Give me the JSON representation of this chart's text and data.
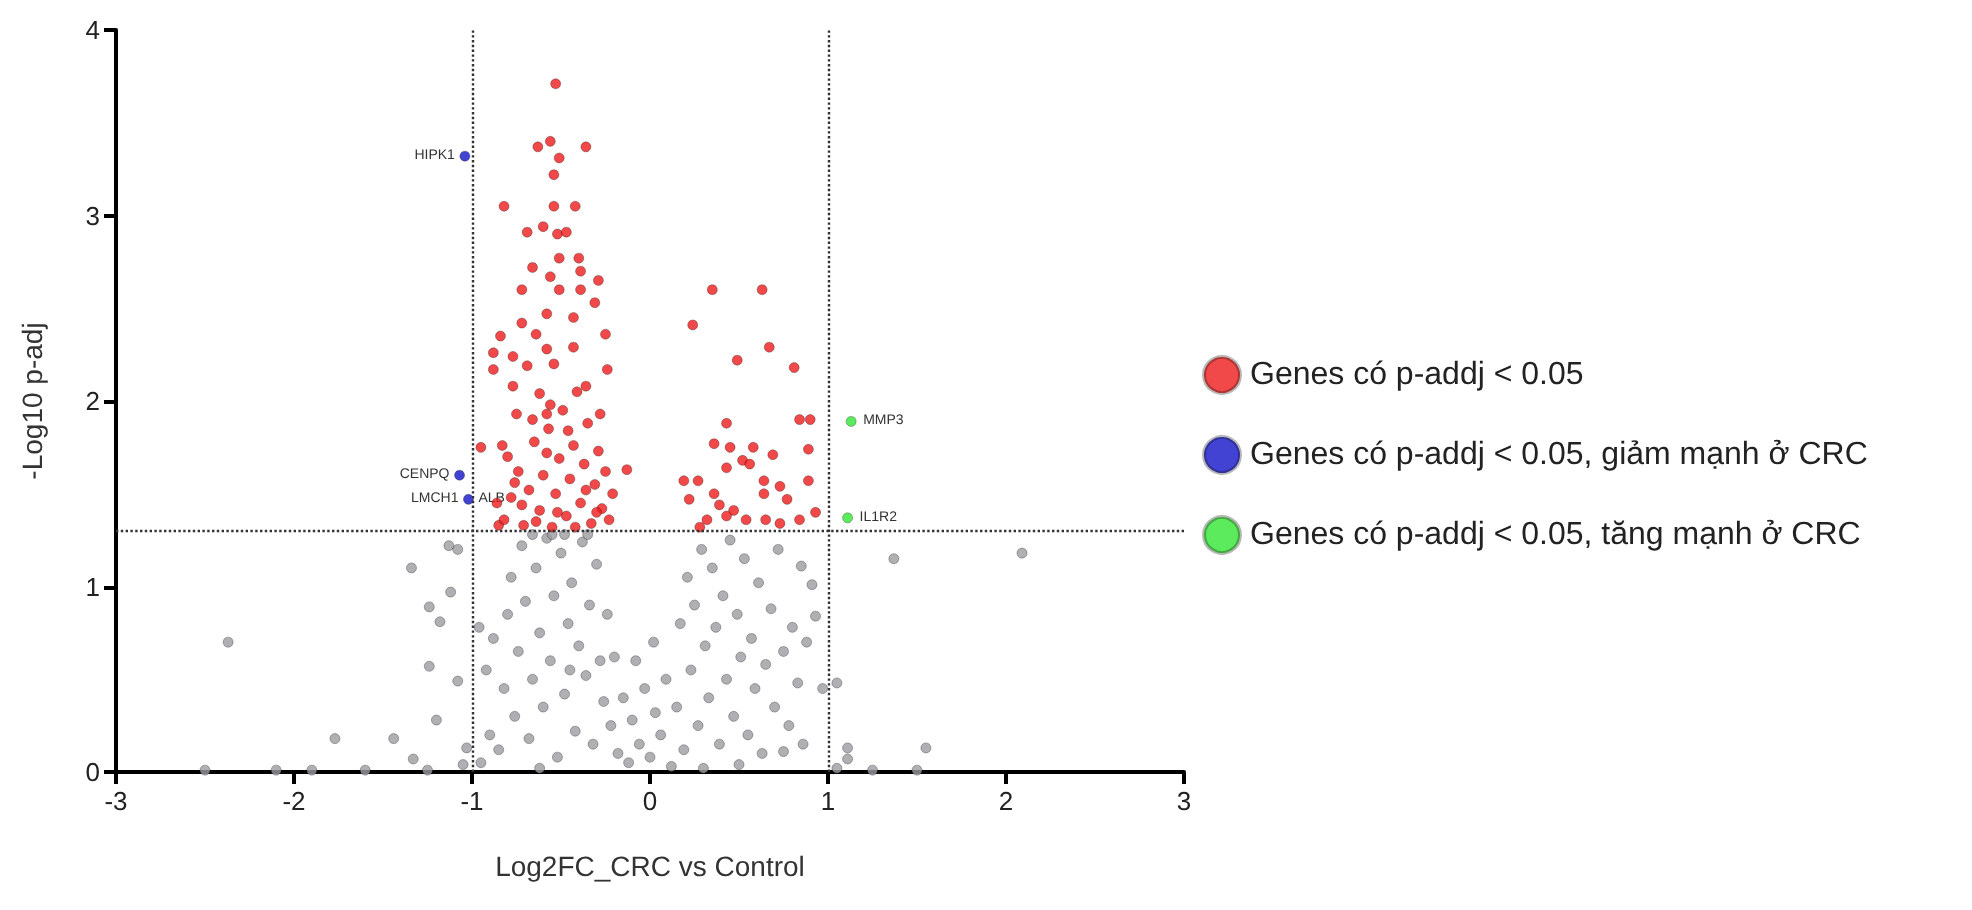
{
  "chart_data": {
    "type": "scatter",
    "xlabel": "Log2FC_CRC vs Control",
    "ylabel": "-Log10 p-adj",
    "xlim": [
      -3,
      3
    ],
    "xticks": [
      -3,
      -2,
      -1,
      0,
      1,
      2,
      3
    ],
    "ylim": [
      0,
      4
    ],
    "yticks": [
      0,
      1,
      2,
      3,
      4
    ],
    "grid": false,
    "legend": "right",
    "marker": "circle",
    "ref_lines": [
      {
        "axis": "x",
        "value": -1,
        "line_style": "dotted",
        "color": "#333333"
      },
      {
        "axis": "x",
        "value": 1,
        "line_style": "dotted",
        "color": "#333333"
      },
      {
        "axis": "y",
        "value": 1.3,
        "line_style": "dotted",
        "color": "#333333"
      }
    ],
    "annotations": [
      {
        "text": "HIPK1",
        "x": -1.04,
        "y": 3.32
      },
      {
        "text": "CENPQ",
        "x": -1.07,
        "y": 1.6
      },
      {
        "text": "LMCH1",
        "x": -1.02,
        "y": 1.47
      },
      {
        "text": "ALB",
        "x": -1.02,
        "y": 1.47
      },
      {
        "text": "MMP3",
        "x": 1.13,
        "y": 1.89
      },
      {
        "text": "IL1R2",
        "x": 1.11,
        "y": 1.37
      }
    ],
    "series": [
      {
        "color": "#9b9ba1",
        "x": [
          -0.85,
          -0.82,
          -0.8,
          -0.78,
          -0.76,
          -0.74,
          -0.72,
          -0.7,
          -0.68,
          -0.66,
          -0.64,
          -0.62,
          -0.6,
          -0.58,
          -0.56,
          -0.54,
          -0.52,
          -0.5,
          -0.48,
          -0.46,
          -0.44,
          -0.42,
          -0.4,
          -0.38,
          -0.36,
          -0.34,
          -0.32,
          -0.3,
          -0.28,
          -0.26,
          -0.24,
          -0.22,
          -0.2,
          -0.18,
          -0.88,
          -0.9,
          -0.92,
          -0.95,
          -0.62,
          -0.45,
          -0.55,
          -0.35,
          -0.48,
          -0.66,
          -0.15,
          -0.12,
          -0.1,
          -0.06,
          -0.03,
          0.0,
          0.03,
          0.06,
          0.09,
          0.12,
          -0.08,
          0.02,
          0.15,
          0.17,
          0.19,
          0.21,
          0.23,
          0.25,
          0.27,
          0.29,
          0.31,
          0.33,
          0.35,
          0.37,
          0.39,
          0.41,
          0.43,
          0.45,
          0.47,
          0.49,
          0.51,
          0.53,
          0.55,
          0.57,
          0.59,
          0.61,
          0.63,
          0.65,
          0.68,
          0.7,
          0.72,
          0.75,
          0.78,
          0.8,
          0.83,
          0.86,
          0.88,
          0.3,
          0.5,
          -2.5,
          -2.1,
          -1.9,
          -1.6,
          -1.25,
          -1.05,
          1.05,
          1.25,
          1.5,
          -2.37,
          -1.34,
          -1.12,
          -1.24,
          -1.18,
          -1.24,
          -1.2,
          -1.77,
          -1.44,
          -1.33,
          -1.13,
          -1.08,
          1.37,
          2.09,
          1.55,
          1.11,
          1.11,
          1.05,
          0.93,
          0.91,
          0.85,
          0.97,
          0.75,
          -1.03,
          -1.08,
          -0.96
        ],
        "values": [
          0.12,
          0.45,
          0.85,
          1.05,
          0.3,
          0.65,
          1.22,
          0.92,
          0.18,
          0.5,
          1.1,
          0.75,
          0.35,
          1.26,
          0.6,
          0.95,
          0.08,
          1.18,
          0.42,
          0.8,
          1.02,
          0.22,
          0.68,
          1.24,
          0.52,
          0.9,
          0.15,
          1.12,
          0.6,
          0.38,
          0.85,
          0.25,
          0.62,
          0.1,
          0.72,
          0.2,
          0.55,
          0.05,
          0.02,
          0.55,
          1.28,
          1.28,
          1.28,
          1.28,
          0.4,
          0.05,
          0.28,
          0.15,
          0.45,
          0.08,
          0.32,
          0.2,
          0.5,
          0.03,
          0.6,
          0.7,
          0.35,
          0.8,
          0.12,
          1.05,
          0.55,
          0.9,
          0.25,
          1.2,
          0.68,
          0.4,
          1.1,
          0.78,
          0.15,
          0.95,
          0.5,
          1.25,
          0.3,
          0.85,
          0.62,
          1.15,
          0.2,
          0.72,
          0.45,
          1.02,
          0.1,
          0.58,
          0.88,
          0.35,
          1.2,
          0.65,
          0.25,
          0.78,
          0.48,
          0.15,
          0.7,
          0.02,
          0.04,
          0.01,
          0.01,
          0.01,
          0.01,
          0.01,
          0.04,
          0.02,
          0.01,
          0.01,
          0.7,
          1.1,
          0.97,
          0.89,
          0.81,
          0.57,
          0.28,
          0.18,
          0.18,
          0.07,
          1.22,
          1.2,
          1.15,
          1.18,
          0.13,
          0.13,
          0.07,
          0.48,
          0.84,
          1.01,
          1.11,
          0.45,
          0.11,
          0.13,
          0.49,
          0.78
        ]
      },
      {
        "name": "Genes có p-addj < 0.05",
        "color": "#ee1c1c",
        "x": [
          -0.53,
          -0.63,
          -0.56,
          -0.36,
          -0.51,
          -0.54,
          -0.82,
          -0.54,
          -0.42,
          -0.69,
          -0.6,
          -0.52,
          -0.47,
          -0.51,
          -0.4,
          -0.66,
          -0.56,
          -0.39,
          -0.29,
          -0.72,
          -0.51,
          -0.39,
          -0.31,
          -0.58,
          -0.43,
          -0.84,
          -0.72,
          -0.64,
          -0.25,
          -0.88,
          -0.77,
          -0.58,
          -0.43,
          -0.88,
          -0.69,
          -0.54,
          -0.24,
          -0.77,
          -0.62,
          -0.36,
          -0.75,
          -0.58,
          -0.28,
          -0.95,
          -0.83,
          -0.13,
          -0.85,
          -0.82,
          -0.78,
          -0.74,
          -0.8,
          -0.71,
          -0.68,
          -0.65,
          -0.62,
          -0.6,
          -0.57,
          -0.55,
          -0.53,
          -0.51,
          -0.49,
          -0.47,
          -0.45,
          -0.43,
          -0.41,
          -0.39,
          -0.37,
          -0.35,
          -0.33,
          -0.31,
          -0.29,
          -0.27,
          -0.25,
          -0.23,
          -0.21,
          -0.66,
          -0.72,
          -0.58,
          -0.46,
          -0.36,
          -0.3,
          -0.76,
          -0.64,
          -0.52,
          -0.42,
          -0.86,
          -0.56,
          0.35,
          0.63,
          0.24,
          0.67,
          0.49,
          0.81,
          0.84,
          0.9,
          0.43,
          0.36,
          0.45,
          0.58,
          0.52,
          0.69,
          0.56,
          0.89,
          0.43,
          0.19,
          0.27,
          0.64,
          0.89,
          0.36,
          0.73,
          0.22,
          0.39,
          0.47,
          0.64,
          0.77,
          0.93,
          0.84,
          0.32,
          0.43,
          0.54,
          0.65,
          0.73,
          0.28
        ],
        "values": [
          3.71,
          3.37,
          3.4,
          3.37,
          3.31,
          3.22,
          3.05,
          3.05,
          3.05,
          2.91,
          2.94,
          2.9,
          2.91,
          2.77,
          2.77,
          2.72,
          2.67,
          2.7,
          2.65,
          2.6,
          2.6,
          2.6,
          2.53,
          2.47,
          2.45,
          2.35,
          2.42,
          2.36,
          2.36,
          2.26,
          2.24,
          2.28,
          2.29,
          2.17,
          2.19,
          2.2,
          2.17,
          2.08,
          2.04,
          2.08,
          1.93,
          1.93,
          1.93,
          1.75,
          1.76,
          1.63,
          1.33,
          1.36,
          1.48,
          1.62,
          1.7,
          1.33,
          1.52,
          1.78,
          1.41,
          1.6,
          1.85,
          1.32,
          1.5,
          1.69,
          1.95,
          1.38,
          1.58,
          1.76,
          2.05,
          1.45,
          1.66,
          1.88,
          1.34,
          1.55,
          1.73,
          1.42,
          1.62,
          1.36,
          1.5,
          1.9,
          1.44,
          1.72,
          1.84,
          1.52,
          1.4,
          1.56,
          1.35,
          1.4,
          1.32,
          1.45,
          1.98,
          2.6,
          2.6,
          2.41,
          2.29,
          2.22,
          2.18,
          1.9,
          1.9,
          1.88,
          1.77,
          1.75,
          1.75,
          1.68,
          1.71,
          1.66,
          1.74,
          1.64,
          1.57,
          1.57,
          1.57,
          1.57,
          1.5,
          1.54,
          1.47,
          1.44,
          1.41,
          1.5,
          1.47,
          1.4,
          1.36,
          1.36,
          1.38,
          1.36,
          1.36,
          1.34,
          1.32
        ]
      },
      {
        "name": "Genes có p-addj < 0.05, giảm mạnh ở CRC",
        "color": "#1414c8",
        "x": [
          -1.04,
          -1.07,
          -1.02
        ],
        "values": [
          3.32,
          1.6,
          1.47
        ]
      },
      {
        "name": "Genes có p-addj < 0.05, tăng mạnh ở CRC",
        "color": "#33e633",
        "x": [
          1.13,
          1.11
        ],
        "values": [
          1.89,
          1.37
        ]
      }
    ]
  }
}
